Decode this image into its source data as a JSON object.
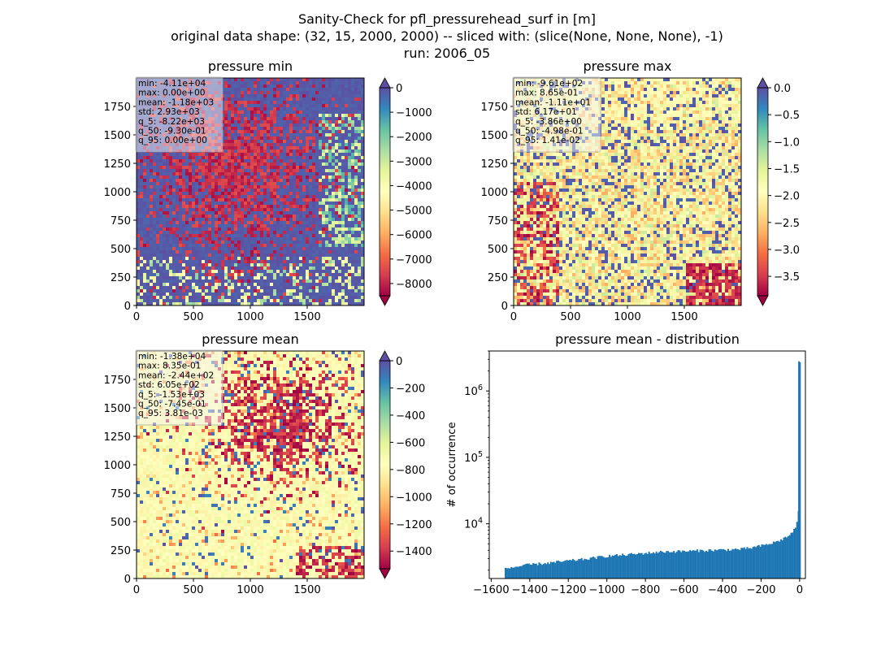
{
  "figure": {
    "title_lines": [
      "Sanity-Check for pfl_pressurehead_surf in [m]",
      "original data shape: (32, 15, 2000, 2000) -- sliced with: (slice(None, None, None), -1)",
      "run: 2006_05"
    ]
  },
  "panels": {
    "min": {
      "title": "pressure min"
    },
    "max": {
      "title": "pressure max"
    },
    "mean": {
      "title": "pressure mean"
    },
    "hist": {
      "title": "pressure mean - distribution"
    }
  },
  "chart_data": [
    {
      "type": "heatmap",
      "id": "min",
      "title": "pressure min",
      "colormap": "Spectral",
      "xlim": [
        0,
        2000
      ],
      "ylim": [
        0,
        2000
      ],
      "xticks": [
        0,
        500,
        1000,
        1500
      ],
      "yticks": [
        0,
        250,
        500,
        750,
        1000,
        1250,
        1500,
        1750
      ],
      "colorbar": {
        "ticks": [
          0,
          -1000,
          -2000,
          -3000,
          -4000,
          -5000,
          -6000,
          -7000,
          -8000
        ],
        "range": [
          -8500,
          0
        ],
        "extend": "both"
      },
      "stats": [
        "min: -4.11e+04",
        "max: 0.00e+00",
        "mean: -1.18e+03",
        "std: 2.93e+03",
        "q_5: -8.22e+03",
        "q_50: -9.30e-01",
        "q_95: 0.00e+00"
      ]
    },
    {
      "type": "heatmap",
      "id": "max",
      "title": "pressure max",
      "colormap": "Spectral",
      "xlim": [
        0,
        2000
      ],
      "ylim": [
        0,
        2000
      ],
      "xticks": [
        0,
        500,
        1000,
        1500
      ],
      "yticks": [
        0,
        250,
        500,
        750,
        1000,
        1250,
        1500,
        1750
      ],
      "colorbar": {
        "ticks": [
          "0.0",
          "−0.5",
          "−1.0",
          "−1.5",
          "−2.0",
          "−2.5",
          "−3.0",
          "−3.5"
        ],
        "range": [
          -3.86,
          0
        ],
        "extend": "both"
      },
      "stats": [
        "min: -9.61e+02",
        "max: 8.65e-01",
        "mean: -1.11e+01",
        "std: 6.17e+01",
        "q_5: -3.86e+00",
        "q_50: -4.98e-01",
        "q_95: 1.41e-02"
      ]
    },
    {
      "type": "heatmap",
      "id": "mean",
      "title": "pressure mean",
      "colormap": "Spectral",
      "xlim": [
        0,
        2000
      ],
      "ylim": [
        0,
        2000
      ],
      "xticks": [
        0,
        500,
        1000,
        1500
      ],
      "yticks": [
        0,
        250,
        500,
        750,
        1000,
        1250,
        1500,
        1750
      ],
      "colorbar": {
        "ticks": [
          0,
          -200,
          -400,
          -600,
          -800,
          -1000,
          -1200,
          -1400
        ],
        "range": [
          -1530,
          0
        ],
        "extend": "both"
      },
      "stats": [
        "min: -1.38e+04",
        "max: 8.35e-01",
        "mean: -2.44e+02",
        "std: 6.05e+02",
        "q_5: -1.53e+03",
        "q_50: -7.45e-01",
        "q_95: 3.81e-03"
      ]
    },
    {
      "type": "bar",
      "id": "hist",
      "title": "pressure mean - distribution",
      "ylabel": "# of occurrence",
      "yscale": "log",
      "color": "#1f77b4",
      "xlim": [
        -1610,
        30
      ],
      "ylim_log": [
        1500,
        4000000
      ],
      "xticks": [
        -1600,
        -1400,
        -1200,
        -1000,
        -800,
        -600,
        -400,
        -200,
        0
      ],
      "yticks": [
        {
          "value": 10000,
          "label": "10^4"
        },
        {
          "value": 100000,
          "label": "10^5"
        },
        {
          "value": 1000000,
          "label": "10^6"
        }
      ],
      "x": [
        -1525,
        -1400,
        -1300,
        -1200,
        -1100,
        -1000,
        -900,
        -800,
        -700,
        -600,
        -500,
        -400,
        -300,
        -250,
        -200,
        -150,
        -100,
        -60,
        -40,
        -25,
        -15,
        -8,
        -4,
        -2,
        -1
      ],
      "values": [
        2150,
        2450,
        2600,
        2800,
        3000,
        3300,
        3450,
        3650,
        3850,
        3900,
        4000,
        4100,
        4200,
        4400,
        4700,
        5100,
        5700,
        6600,
        7400,
        8500,
        10000,
        13000,
        18000,
        40000,
        2800000
      ]
    }
  ]
}
